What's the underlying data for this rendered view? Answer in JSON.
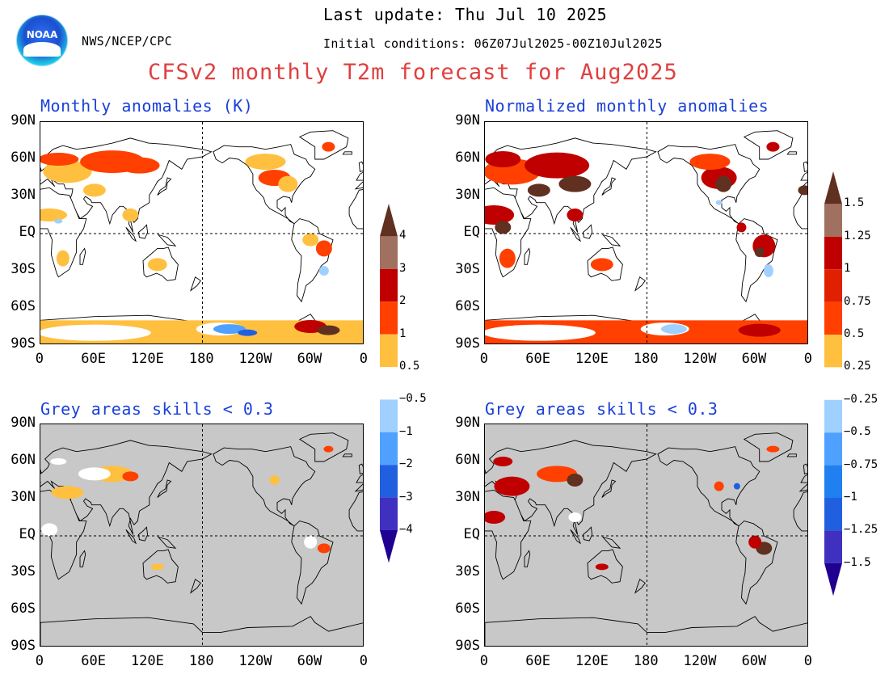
{
  "header": {
    "last_update": "Last update: Thu Jul 10 2025",
    "agency": "NWS/NCEP/CPC",
    "initial_conditions": "Initial conditions: 06Z07Jul2025-00Z10Jul2025",
    "title": "CFSv2 monthly T2m forecast for Aug2025",
    "logo_text": "NOAA"
  },
  "panels": {
    "top_left": {
      "title": "Monthly anomalies (K)"
    },
    "top_right": {
      "title": "Normalized monthly anomalies"
    },
    "bottom_left": {
      "title": "Grey areas skills < 0.3"
    },
    "bottom_right": {
      "title": "Grey areas skills < 0.3"
    }
  },
  "axes": {
    "lat_labels": [
      "90N",
      "60N",
      "30N",
      "EQ",
      "30S",
      "60S",
      "90S"
    ],
    "lon_labels": [
      "0",
      "60E",
      "120E",
      "180",
      "120W",
      "60W",
      "0"
    ]
  },
  "colorbar_left": {
    "labels": [
      "4",
      "3",
      "2",
      "1",
      "0.5",
      "−0.5",
      "−1",
      "−2",
      "−3",
      "−4"
    ]
  },
  "colorbar_right": {
    "labels": [
      "1.5",
      "1.25",
      "1",
      "0.75",
      "0.5",
      "0.25",
      "−0.25",
      "−0.5",
      "−0.75",
      "−1",
      "−1.25",
      "−1.5"
    ]
  },
  "colors": {
    "title": "#e04040",
    "panel_title": "#1a3fd8",
    "warm": [
      "#ffc040",
      "#ff4000",
      "#c00000",
      "#a07060",
      "#603020"
    ],
    "cool": [
      "#a0d0ff",
      "#50a0ff",
      "#2060e0",
      "#4030c0",
      "#200090"
    ],
    "grey_mask": "#c8c8c8"
  }
}
